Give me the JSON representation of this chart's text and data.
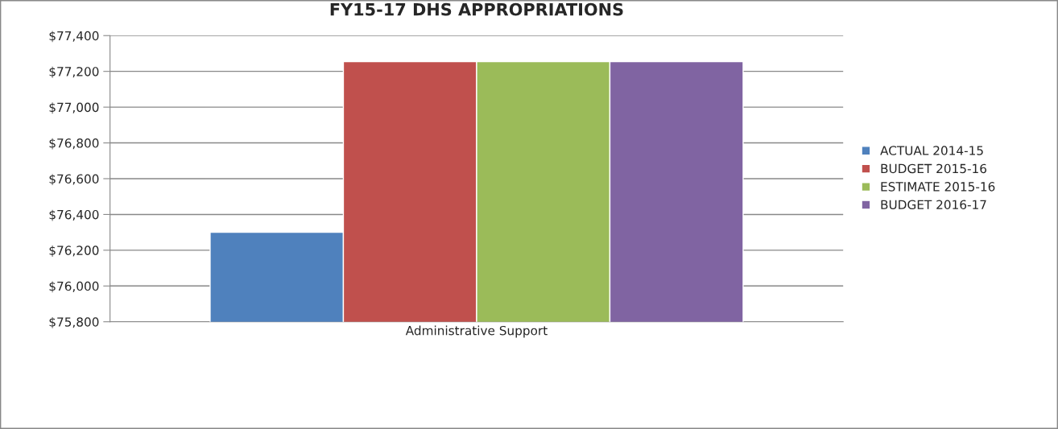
{
  "chart_data": {
    "type": "bar",
    "title": "FY15-17 DHS APPROPRIATIONS",
    "categories": [
      "Administrative Support"
    ],
    "series": [
      {
        "name": "ACTUAL 2014-15",
        "color": "#4f81bd",
        "values": [
          76300
        ]
      },
      {
        "name": "BUDGET 2015-16",
        "color": "#c0504d",
        "values": [
          77255
        ]
      },
      {
        "name": "ESTIMATE 2015-16",
        "color": "#9bbb59",
        "values": [
          77255
        ]
      },
      {
        "name": "BUDGET 2016-17",
        "color": "#8064a2",
        "values": [
          77255
        ]
      }
    ],
    "ylim": [
      75800,
      77400
    ],
    "yticks": [
      {
        "value": 75800,
        "label": "$75,800"
      },
      {
        "value": 76000,
        "label": "$76,000"
      },
      {
        "value": 76200,
        "label": "$76,200"
      },
      {
        "value": 76400,
        "label": "$76,400"
      },
      {
        "value": 76600,
        "label": "$76,600"
      },
      {
        "value": 76800,
        "label": "$76,800"
      },
      {
        "value": 77000,
        "label": "$77,000"
      },
      {
        "value": 77200,
        "label": "$77,200"
      },
      {
        "value": 77400,
        "label": "$77,400"
      }
    ],
    "grid": "y",
    "legend": "right"
  }
}
